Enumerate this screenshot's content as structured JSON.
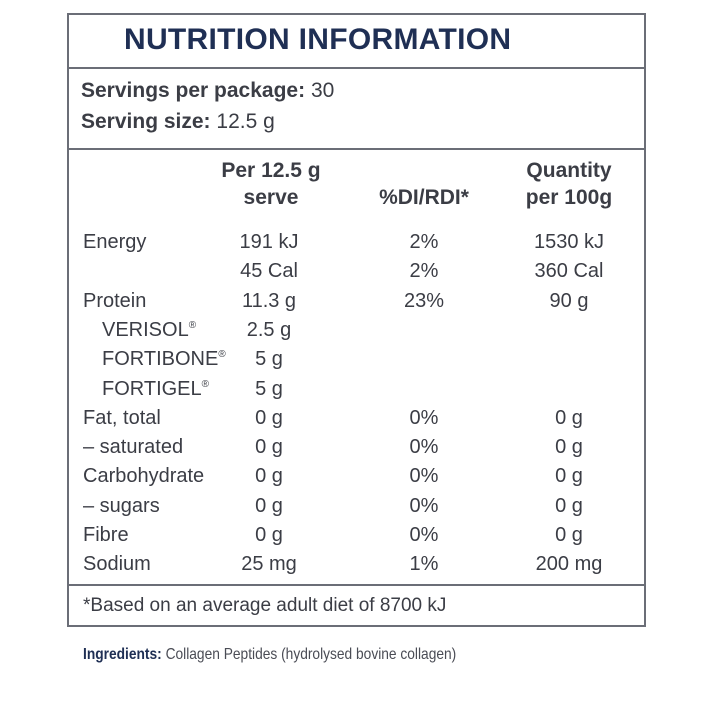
{
  "label": {
    "title": "NUTRITION INFORMATION",
    "servings_per_package_label": "Servings per package:",
    "servings_per_package_value": "30",
    "serving_size_label": "Serving size:",
    "serving_size_value": "12.5 g"
  },
  "columns": {
    "per_serve_line1": "Per 12.5 g",
    "per_serve_line2": "serve",
    "di": "%DI/RDI*",
    "per100_line1": "Quantity",
    "per100_line2": "per 100g"
  },
  "rows": [
    {
      "name": "Energy",
      "serve": "191 kJ",
      "di": "2%",
      "per100": "1530 kJ"
    },
    {
      "name": "",
      "serve": "45 Cal",
      "di": "2%",
      "per100": "360 Cal"
    },
    {
      "name": "Protein",
      "serve": "11.3 g",
      "di": "23%",
      "per100": "90 g"
    },
    {
      "name": "VERISOL",
      "serve": "2.5 g",
      "di": "",
      "per100": "",
      "reg": "®"
    },
    {
      "name": "FORTIBONE",
      "serve": "5 g",
      "di": "",
      "per100": "",
      "reg": "®"
    },
    {
      "name": "FORTIGEL",
      "serve": "5 g",
      "di": "",
      "per100": "",
      "reg": "®"
    },
    {
      "name": "Fat, total",
      "serve": "0 g",
      "di": "0%",
      "per100": "0 g"
    },
    {
      "name": "– saturated",
      "serve": "0 g",
      "di": "0%",
      "per100": "0 g"
    },
    {
      "name": "Carbohydrate",
      "serve": "0 g",
      "di": "0%",
      "per100": "0 g"
    },
    {
      "name": "– sugars",
      "serve": "0 g",
      "di": "0%",
      "per100": "0 g"
    },
    {
      "name": "Fibre",
      "serve": "0 g",
      "di": "0%",
      "per100": "0 g"
    },
    {
      "name": "Sodium",
      "serve": "25 mg",
      "di": "1%",
      "per100": "200 mg"
    }
  ],
  "footnote": "*Based on an average adult diet of 8700 kJ",
  "ingredients": {
    "label": "Ingredients:",
    "text": "Collagen Peptides (hydrolysed bovine collagen)"
  }
}
